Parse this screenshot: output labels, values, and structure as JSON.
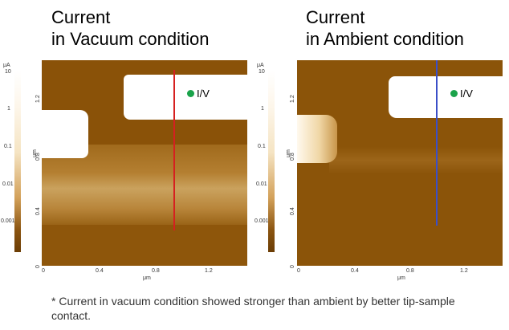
{
  "left_panel": {
    "title_line1": "Current",
    "title_line2": "in Vacuum condition",
    "colorbar_unit": "μA",
    "colorbar_ticks": [
      "10",
      "1",
      "0.1",
      "0.01",
      "0.001"
    ],
    "y_unit": "μm",
    "y_ticks": [
      "1.2",
      "0.8",
      "0.4",
      "0"
    ],
    "x_unit": "μm",
    "x_ticks": [
      "0",
      "0.4",
      "0.8",
      "1.2"
    ],
    "marker_label": "I/V",
    "line_color": "#d62020"
  },
  "right_panel": {
    "title_line1": "Current",
    "title_line2": "in Ambient condition",
    "colorbar_unit": "μA",
    "colorbar_ticks": [
      "10",
      "1",
      "0.1",
      "0.01",
      "0.001"
    ],
    "y_unit": "μm",
    "y_ticks": [
      "1.2",
      "0.8",
      "0.4",
      "0"
    ],
    "x_unit": "μm",
    "x_ticks": [
      "0",
      "0.4",
      "0.8",
      "1.2"
    ],
    "marker_label": "I/V",
    "line_color": "#3b4fc8"
  },
  "footnote": "* Current in vacuum condition showed stronger than ambient by better tip-sample contact.",
  "colors": {
    "map_dark": "#8b5409",
    "map_mid": "#b07a2a",
    "map_light": "#ffffff",
    "marker": "#1aa34a"
  }
}
